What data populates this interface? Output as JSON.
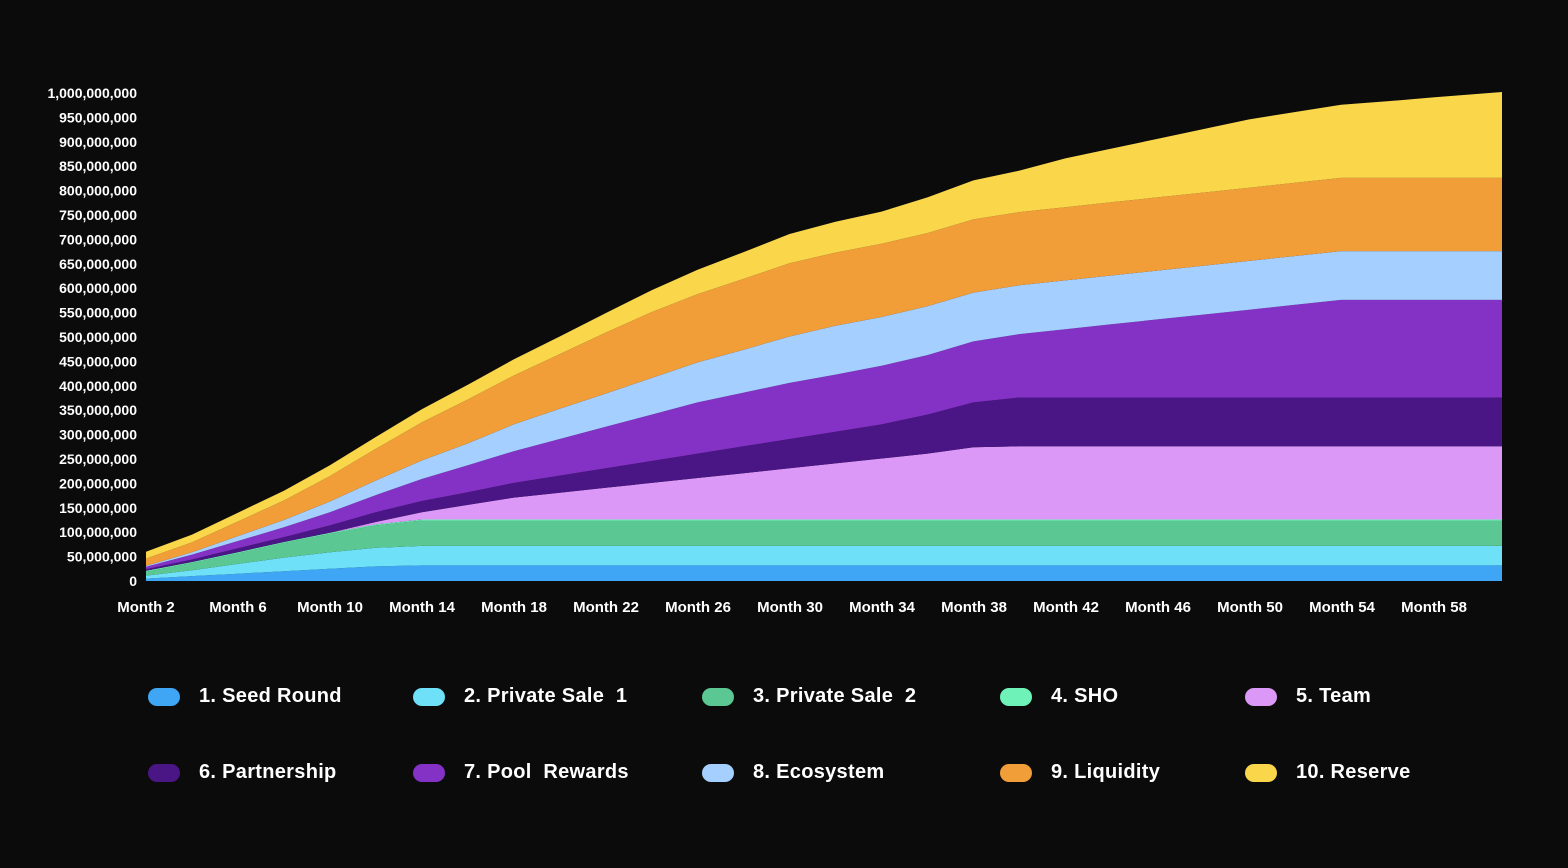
{
  "chart_data": {
    "type": "area",
    "stacked": true,
    "x_categories": [
      "Month 2",
      "Month 6",
      "Month 10",
      "Month 14",
      "Month 18",
      "Month 22",
      "Month 26",
      "Month 30",
      "Month 34",
      "Month 38",
      "Month 42",
      "Month 46",
      "Month 50",
      "Month 54",
      "Month 58"
    ],
    "x_months": [
      1,
      3,
      5,
      7,
      9,
      11,
      13,
      15,
      17,
      19,
      21,
      23,
      25,
      27,
      29,
      31,
      33,
      35,
      37,
      39,
      41,
      43,
      45,
      47,
      49,
      51,
      53,
      55,
      57,
      60
    ],
    "ylim": [
      0,
      1000000000
    ],
    "yticks": [
      0,
      50000000,
      100000000,
      150000000,
      200000000,
      250000000,
      300000000,
      350000000,
      400000000,
      450000000,
      500000000,
      550000000,
      600000000,
      650000000,
      700000000,
      750000000,
      800000000,
      850000000,
      900000000,
      950000000,
      1000000000
    ],
    "ytick_labels": [
      "0",
      "50,000,000",
      "100,000,000",
      "150,000,000",
      "200,000,000",
      "250,000,000",
      "300,000,000",
      "350,000,000",
      "400,000,000",
      "450,000,000",
      "500,000,000",
      "550,000,000",
      "600,000,000",
      "650,000,000",
      "700,000,000",
      "750,000,000",
      "800,000,000",
      "850,000,000",
      "900,000,000",
      "950,000,000",
      "1,000,000,000"
    ],
    "grid": false,
    "legend_position": "bottom",
    "series": [
      {
        "name": "1. Seed Round",
        "color": "#3ea6f5",
        "values": [
          5000000,
          10000000,
          15000000,
          20000000,
          25000000,
          30000000,
          32000000,
          32000000,
          32000000,
          32000000,
          32000000,
          32000000,
          32000000,
          32000000,
          32000000,
          32000000,
          32000000,
          32000000,
          32000000,
          32000000,
          32000000,
          32000000,
          32000000,
          32000000,
          32000000,
          32000000,
          32000000,
          32000000,
          32000000,
          32000000
        ]
      },
      {
        "name": "2. Private Sale  1",
        "color": "#6ee0f7",
        "values": [
          6000000,
          12000000,
          20000000,
          28000000,
          34000000,
          38000000,
          40000000,
          40000000,
          40000000,
          40000000,
          40000000,
          40000000,
          40000000,
          40000000,
          40000000,
          40000000,
          40000000,
          40000000,
          40000000,
          40000000,
          40000000,
          40000000,
          40000000,
          40000000,
          40000000,
          40000000,
          40000000,
          40000000,
          40000000,
          40000000
        ]
      },
      {
        "name": "3. Private Sale  2",
        "color": "#5bc793",
        "values": [
          8000000,
          15000000,
          22000000,
          30000000,
          38000000,
          46000000,
          52000000,
          52000000,
          52000000,
          52000000,
          52000000,
          52000000,
          52000000,
          52000000,
          52000000,
          52000000,
          52000000,
          52000000,
          52000000,
          52000000,
          52000000,
          52000000,
          52000000,
          52000000,
          52000000,
          52000000,
          52000000,
          52000000,
          52000000,
          52000000
        ]
      },
      {
        "name": "4. SHO",
        "color": "#6ff2b8",
        "values": [
          2000000,
          2000000,
          2000000,
          2000000,
          2000000,
          2000000,
          2000000,
          2000000,
          2000000,
          2000000,
          2000000,
          2000000,
          2000000,
          2000000,
          2000000,
          2000000,
          2000000,
          2000000,
          2000000,
          2000000,
          2000000,
          2000000,
          2000000,
          2000000,
          2000000,
          2000000,
          2000000,
          2000000,
          2000000,
          2000000
        ]
      },
      {
        "name": "5. Team",
        "color": "#dc98f7",
        "values": [
          0,
          0,
          0,
          0,
          0,
          5000000,
          15000000,
          30000000,
          45000000,
          55000000,
          65000000,
          75000000,
          85000000,
          95000000,
          105000000,
          115000000,
          125000000,
          135000000,
          148000000,
          150000000,
          150000000,
          150000000,
          150000000,
          150000000,
          150000000,
          150000000,
          150000000,
          150000000,
          150000000,
          150000000
        ]
      },
      {
        "name": "6. Partnership",
        "color": "#4a1685",
        "values": [
          3000000,
          5000000,
          8000000,
          10000000,
          15000000,
          20000000,
          23000000,
          26000000,
          30000000,
          35000000,
          40000000,
          45000000,
          50000000,
          55000000,
          60000000,
          65000000,
          70000000,
          80000000,
          92000000,
          100000000,
          100000000,
          100000000,
          100000000,
          100000000,
          100000000,
          100000000,
          100000000,
          100000000,
          100000000,
          100000000
        ]
      },
      {
        "name": "7. Pool  Rewards",
        "color": "#8431c6",
        "values": [
          5000000,
          10000000,
          15000000,
          20000000,
          27000000,
          35000000,
          45000000,
          55000000,
          65000000,
          75000000,
          85000000,
          95000000,
          105000000,
          110000000,
          115000000,
          117000000,
          120000000,
          122000000,
          125000000,
          130000000,
          140000000,
          150000000,
          160000000,
          170000000,
          180000000,
          190000000,
          200000000,
          200000000,
          200000000,
          200000000
        ]
      },
      {
        "name": "8. Ecosystem",
        "color": "#a5cfff",
        "values": [
          2000000,
          5000000,
          10000000,
          15000000,
          22000000,
          30000000,
          38000000,
          45000000,
          55000000,
          62000000,
          68000000,
          75000000,
          82000000,
          88000000,
          95000000,
          100000000,
          100000000,
          100000000,
          100000000,
          100000000,
          100000000,
          100000000,
          100000000,
          100000000,
          100000000,
          100000000,
          100000000,
          100000000,
          100000000,
          100000000
        ]
      },
      {
        "name": "9. Liquidity",
        "color": "#f19d38",
        "values": [
          15000000,
          20000000,
          30000000,
          40000000,
          52000000,
          65000000,
          78000000,
          90000000,
          100000000,
          112000000,
          125000000,
          135000000,
          140000000,
          145000000,
          150000000,
          150000000,
          150000000,
          150000000,
          150000000,
          150000000,
          150000000,
          150000000,
          150000000,
          150000000,
          150000000,
          150000000,
          150000000,
          150000000,
          150000000,
          150000000
        ]
      },
      {
        "name": "10. Reserve",
        "color": "#f9d64a",
        "values": [
          14000000,
          16000000,
          18000000,
          20000000,
          22000000,
          24000000,
          27000000,
          30000000,
          33000000,
          36000000,
          40000000,
          45000000,
          50000000,
          55000000,
          60000000,
          63000000,
          66000000,
          73000000,
          80000000,
          85000000,
          100000000,
          110000000,
          120000000,
          130000000,
          140000000,
          145000000,
          150000000,
          157000000,
          165000000,
          176000000
        ]
      }
    ]
  }
}
